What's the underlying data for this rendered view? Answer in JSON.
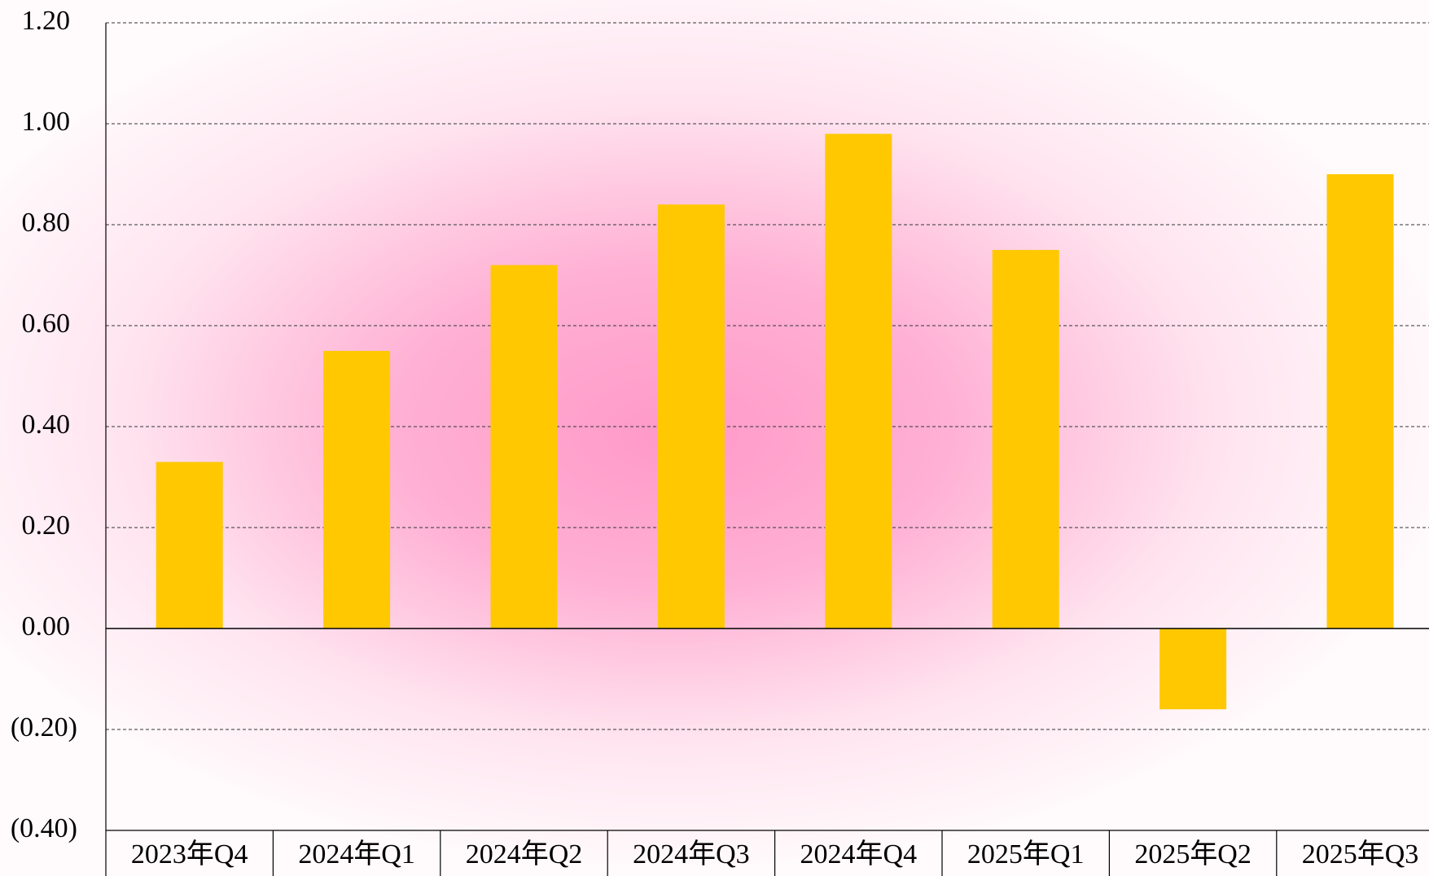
{
  "chart_data": {
    "type": "bar",
    "categories": [
      "2023年Q4",
      "2024年Q1",
      "2024年Q2",
      "2024年Q3",
      "2024年Q4",
      "2025年Q1",
      "2025年Q2",
      "2025年Q3"
    ],
    "values": [
      0.33,
      0.55,
      0.72,
      0.84,
      0.98,
      0.75,
      -0.16,
      0.9
    ],
    "color": "#ffc800",
    "negative_label_color": "#e00000",
    "ylim": [
      -0.4,
      1.2
    ],
    "yticks": [
      {
        "value": -0.4,
        "label": "(0.40)"
      },
      {
        "value": -0.2,
        "label": "(0.20)"
      },
      {
        "value": 0,
        "label": "0.00"
      },
      {
        "value": 0.2,
        "label": "0.20"
      },
      {
        "value": 0.4,
        "label": "0.40"
      },
      {
        "value": 0.6,
        "label": "0.60"
      },
      {
        "value": 0.8,
        "label": "0.80"
      },
      {
        "value": 1.0,
        "label": "1.00"
      },
      {
        "value": 1.2,
        "label": "1.20"
      }
    ],
    "grid": true
  }
}
